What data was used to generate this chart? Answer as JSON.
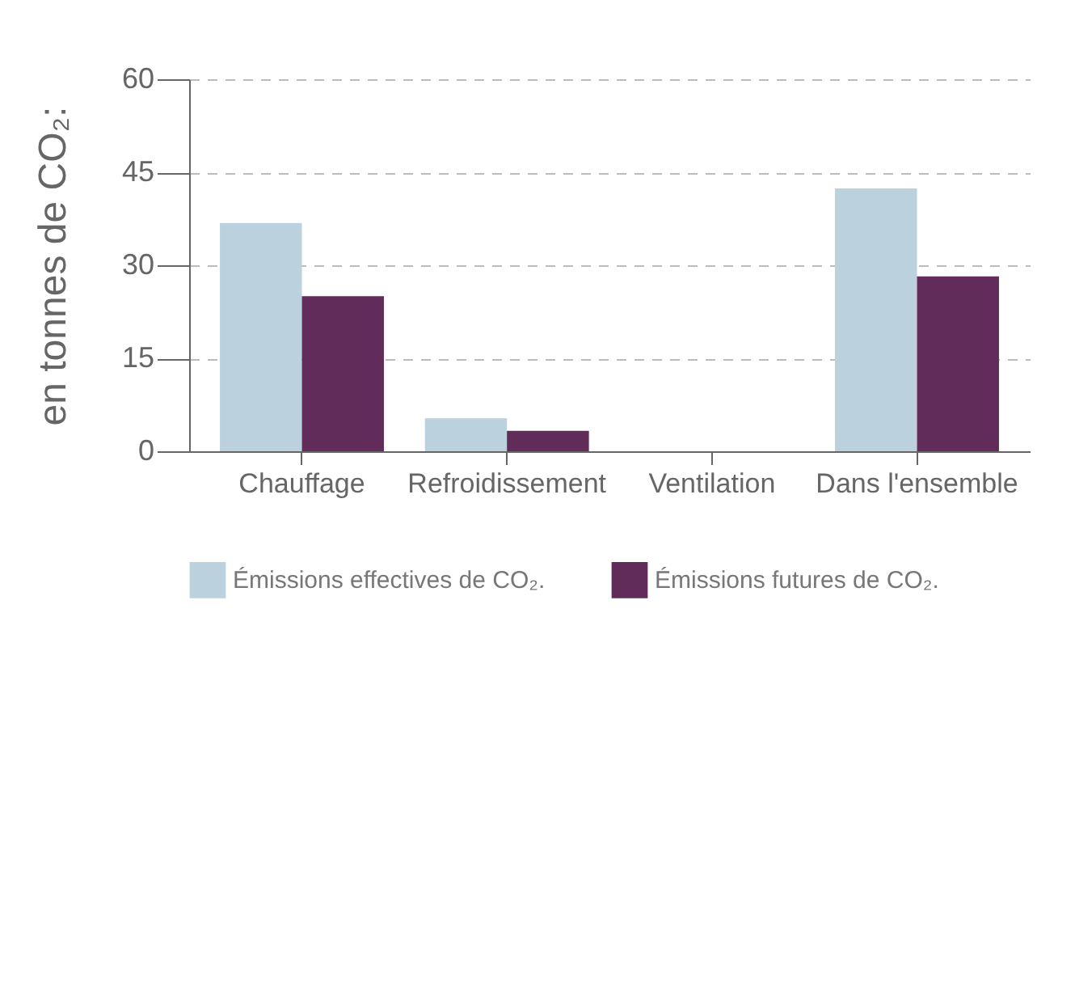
{
  "chart_data": {
    "type": "bar",
    "ylabel": "en tonnes de CO₂:",
    "categories": [
      "Chauffage",
      "Refroidissement",
      "Ventilation",
      "Dans l'ensemble"
    ],
    "series": [
      {
        "name": "Émissions effectives de CO₂.",
        "color": "#bbd1de",
        "values": [
          36.8,
          5.3,
          0,
          42.4
        ]
      },
      {
        "name": "Émissions futures de CO₂.",
        "color": "#612c5a",
        "values": [
          25,
          3.3,
          0,
          28.2
        ]
      }
    ],
    "ylim": [
      0,
      60
    ],
    "yticks": [
      0,
      15,
      30,
      45,
      60
    ],
    "grid": "y",
    "legend": "bottom"
  }
}
